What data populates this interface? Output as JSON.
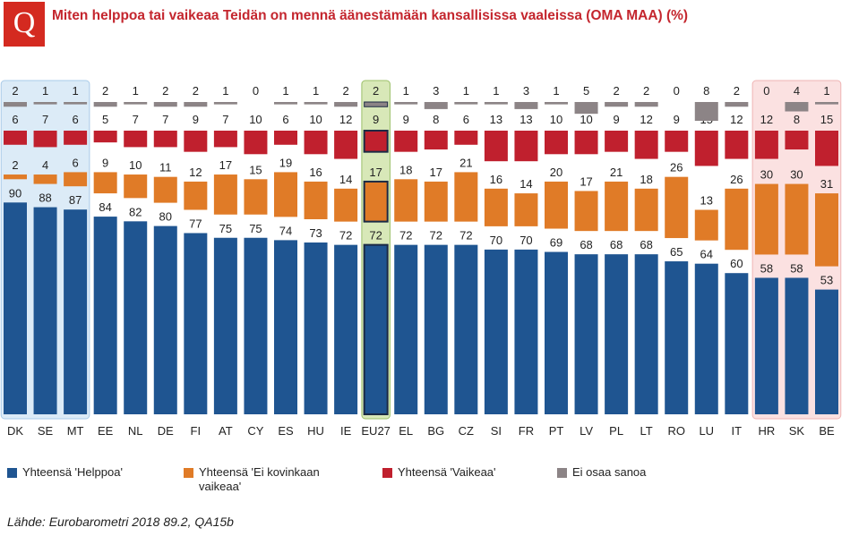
{
  "chart_data": {
    "type": "bar",
    "title": "Miten helppoa tai vaikeaa Teidän on mennä äänestämään kansallisissa vaaleissa (OMA MAA) (%)",
    "logo": "Q",
    "source": "Lähde: Eurobarometri  2018 89.2, QA15b",
    "categories": [
      "DK",
      "SE",
      "MT",
      "EE",
      "NL",
      "DE",
      "FI",
      "AT",
      "CY",
      "ES",
      "HU",
      "IE",
      "EU27",
      "EL",
      "BG",
      "CZ",
      "SI",
      "FR",
      "PT",
      "LV",
      "PL",
      "LT",
      "RO",
      "LU",
      "IT",
      "HR",
      "SK",
      "BE"
    ],
    "series": [
      {
        "name": "Yhteensä 'Helppoa'",
        "color": "#1f5591",
        "values": [
          90,
          88,
          87,
          84,
          82,
          80,
          77,
          75,
          75,
          74,
          73,
          72,
          72,
          72,
          72,
          72,
          70,
          70,
          69,
          68,
          68,
          68,
          65,
          64,
          60,
          58,
          58,
          53
        ]
      },
      {
        "name": "Yhteensä 'Ei kovinkaan vaikeaa'",
        "color": "#e07b27",
        "values": [
          2,
          4,
          6,
          9,
          10,
          11,
          12,
          17,
          15,
          19,
          16,
          14,
          17,
          18,
          17,
          21,
          16,
          14,
          20,
          17,
          21,
          18,
          26,
          13,
          26,
          30,
          30,
          31
        ]
      },
      {
        "name": "Yhteensä 'Vaikeaa'",
        "color": "#c0202e",
        "values": [
          6,
          7,
          6,
          5,
          7,
          7,
          9,
          7,
          10,
          6,
          10,
          12,
          9,
          9,
          8,
          6,
          13,
          13,
          10,
          10,
          9,
          12,
          9,
          15,
          12,
          12,
          8,
          15
        ]
      },
      {
        "name": "Ei osaa sanoa",
        "color": "#8c8486",
        "values": [
          2,
          1,
          1,
          2,
          1,
          2,
          2,
          1,
          0,
          1,
          1,
          2,
          2,
          1,
          3,
          1,
          1,
          3,
          1,
          5,
          2,
          2,
          0,
          8,
          2,
          0,
          4,
          1
        ]
      }
    ]
  }
}
